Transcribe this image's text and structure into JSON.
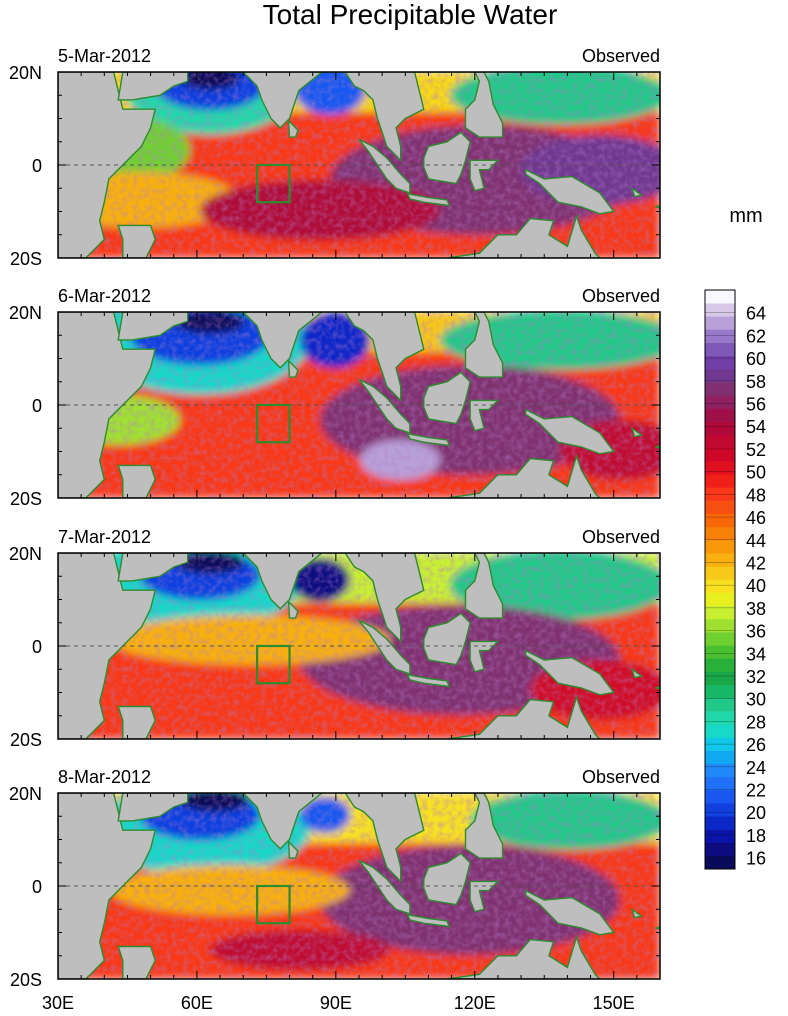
{
  "title": "Total Precipitable Water",
  "units": "mm",
  "panels": [
    {
      "date": "5-Mar-2012",
      "label": "Observed"
    },
    {
      "date": "6-Mar-2012",
      "label": "Observed"
    },
    {
      "date": "7-Mar-2012",
      "label": "Observed"
    },
    {
      "date": "8-Mar-2012",
      "label": "Observed"
    }
  ],
  "lat_labels": [
    "20N",
    "0",
    "20S"
  ],
  "lon_labels": [
    "30E",
    "60E",
    "90E",
    "120E",
    "150E"
  ],
  "colorbar": {
    "tick_labels": [
      "16",
      "18",
      "20",
      "22",
      "24",
      "26",
      "28",
      "30",
      "32",
      "34",
      "36",
      "38",
      "40",
      "42",
      "44",
      "46",
      "48",
      "50",
      "52",
      "54",
      "56",
      "58",
      "60",
      "62",
      "64"
    ],
    "colors": [
      "#0a0a5a",
      "#0c0c80",
      "#0a14a8",
      "#0a28c8",
      "#1040e0",
      "#1858f0",
      "#2070f8",
      "#2088f8",
      "#10a8f0",
      "#10c8e8",
      "#18d8c8",
      "#20d8a8",
      "#20c888",
      "#18b868",
      "#18a848",
      "#28b038",
      "#48c030",
      "#70d030",
      "#a0e030",
      "#c8f030",
      "#e8f020",
      "#f8e020",
      "#f8c818",
      "#f8b010",
      "#f89808",
      "#f88008",
      "#f86808",
      "#f85010",
      "#f83818",
      "#f02018",
      "#e01020",
      "#d00828",
      "#c00830",
      "#b00838",
      "#a01048",
      "#902060",
      "#803070",
      "#703890",
      "#7040a8",
      "#8058b8",
      "#9878c8",
      "#b8a0d8",
      "#d8c8e8",
      "#f8f8ff"
    ]
  },
  "chart_data": {
    "type": "heatmap",
    "title": "Total Precipitable Water",
    "variable": "total precipitable water",
    "units": "mm",
    "lon_range": [
      30,
      160
    ],
    "lat_range": [
      -20,
      20
    ],
    "panel_dates": [
      "5-Mar-2012",
      "6-Mar-2012",
      "7-Mar-2012",
      "8-Mar-2012"
    ],
    "panel_source": "Observed",
    "color_range": [
      15,
      66
    ],
    "colorbar_ticks": [
      16,
      18,
      20,
      22,
      24,
      26,
      28,
      30,
      32,
      34,
      36,
      38,
      40,
      42,
      44,
      46,
      48,
      50,
      52,
      54,
      56,
      58,
      60,
      62,
      64
    ],
    "analysis_box": {
      "lon": [
        73,
        80
      ],
      "lat": [
        -8,
        0
      ]
    },
    "equator_line": "dashed"
  }
}
